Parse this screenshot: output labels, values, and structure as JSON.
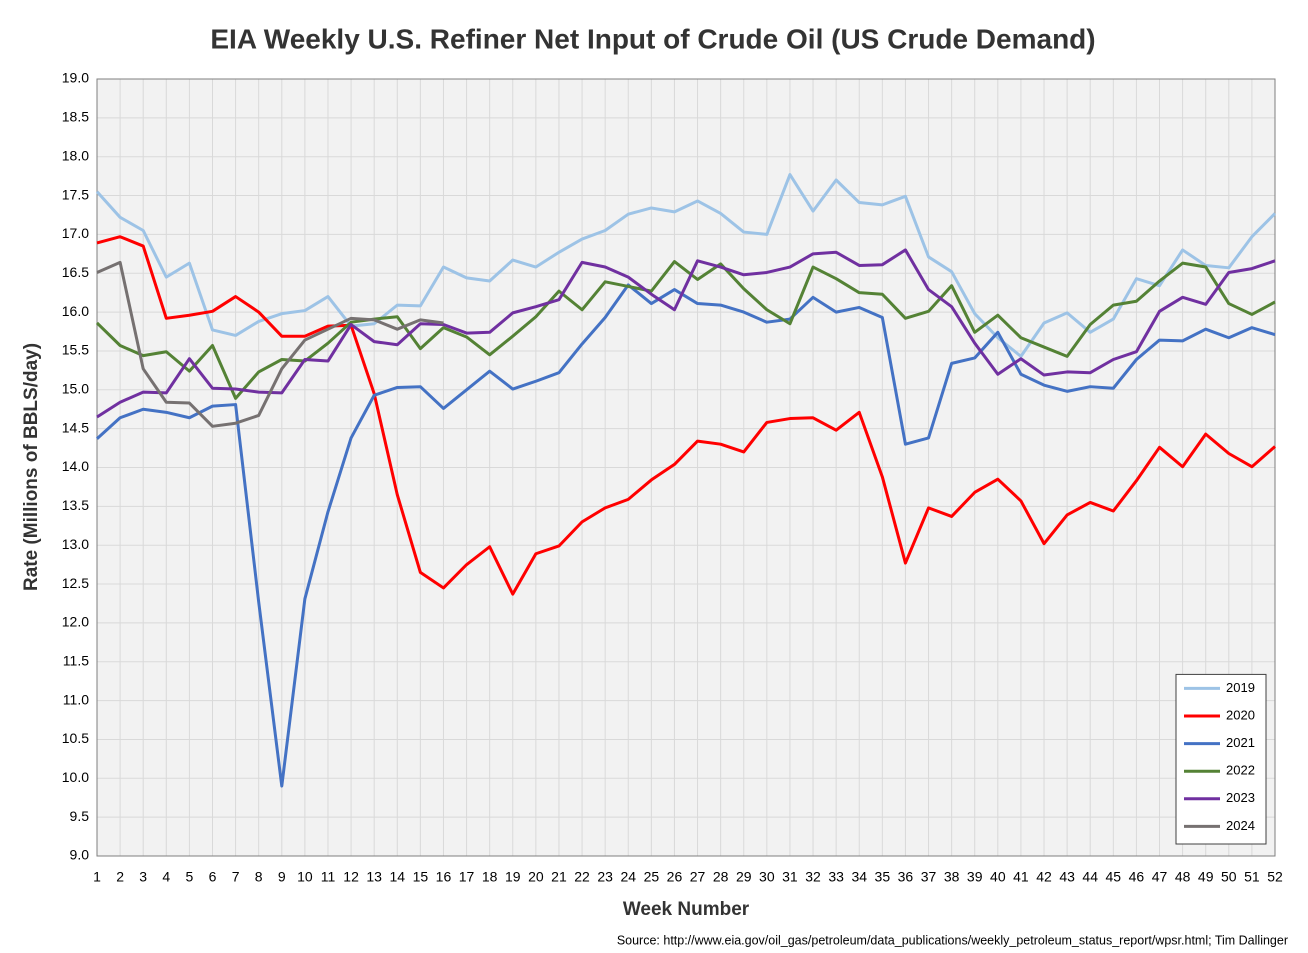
{
  "chart_data": {
    "type": "line",
    "title": "EIA Weekly U.S. Refiner Net Input of Crude Oil (US Crude Demand)",
    "xlabel": "Week Number",
    "ylabel": "Rate (Millions of BBLS/day)",
    "source": "Source: http://www.eia.gov/oil_gas/petroleum/data_publications/weekly_petroleum_status_report/wpsr.html; Tim Dallinger",
    "x": [
      1,
      2,
      3,
      4,
      5,
      6,
      7,
      8,
      9,
      10,
      11,
      12,
      13,
      14,
      15,
      16,
      17,
      18,
      19,
      20,
      21,
      22,
      23,
      24,
      25,
      26,
      27,
      28,
      29,
      30,
      31,
      32,
      33,
      34,
      35,
      36,
      37,
      38,
      39,
      40,
      41,
      42,
      43,
      44,
      45,
      46,
      47,
      48,
      49,
      50,
      51,
      52
    ],
    "xlim": [
      1,
      52
    ],
    "xticks": [
      1,
      2,
      3,
      4,
      5,
      6,
      7,
      8,
      9,
      10,
      11,
      12,
      13,
      14,
      15,
      16,
      17,
      18,
      19,
      20,
      21,
      22,
      23,
      24,
      25,
      26,
      27,
      28,
      29,
      30,
      31,
      32,
      33,
      34,
      35,
      36,
      37,
      38,
      39,
      40,
      41,
      42,
      43,
      44,
      45,
      46,
      47,
      48,
      49,
      50,
      51,
      52
    ],
    "ylim": [
      9,
      19
    ],
    "yticks": [
      {
        "value": 9,
        "label": "9.0"
      },
      {
        "value": 9.5,
        "label": "9.5"
      },
      {
        "value": 10,
        "label": "10.0"
      },
      {
        "value": 10.5,
        "label": "10.5"
      },
      {
        "value": 11,
        "label": "11.0"
      },
      {
        "value": 11.5,
        "label": "11.5"
      },
      {
        "value": 12,
        "label": "12.0"
      },
      {
        "value": 12.5,
        "label": "12.5"
      },
      {
        "value": 13,
        "label": "13.0"
      },
      {
        "value": 13.5,
        "label": "13.5"
      },
      {
        "value": 14,
        "label": "14.0"
      },
      {
        "value": 14.5,
        "label": "14.5"
      },
      {
        "value": 15,
        "label": "15.0"
      },
      {
        "value": 15.5,
        "label": "15.5"
      },
      {
        "value": 16,
        "label": "16.0"
      },
      {
        "value": 16.5,
        "label": "16.5"
      },
      {
        "value": 17,
        "label": "17.0"
      },
      {
        "value": 17.5,
        "label": "17.5"
      },
      {
        "value": 18,
        "label": "18.0"
      },
      {
        "value": 18.5,
        "label": "18.5"
      },
      {
        "value": 19,
        "label": "19.0"
      }
    ],
    "grid": true,
    "legend": "lower right",
    "series": [
      {
        "name": "2019",
        "color": "#9dc3e6",
        "values": [
          17.55,
          17.22,
          17.05,
          16.45,
          16.63,
          15.77,
          15.7,
          15.88,
          15.98,
          16.02,
          16.2,
          15.82,
          15.85,
          16.09,
          16.08,
          16.58,
          16.44,
          16.4,
          16.67,
          16.58,
          16.77,
          16.94,
          17.05,
          17.26,
          17.34,
          17.29,
          17.43,
          17.27,
          17.03,
          17.0,
          17.77,
          17.3,
          17.7,
          17.41,
          17.38,
          17.49,
          16.71,
          16.52,
          15.98,
          15.67,
          15.43,
          15.86,
          15.99,
          15.74,
          15.91,
          16.43,
          16.34,
          16.8,
          16.6,
          16.57,
          16.97,
          17.27
        ]
      },
      {
        "name": "2020",
        "color": "#ff0000",
        "values": [
          16.89,
          16.97,
          16.85,
          15.92,
          15.96,
          16.01,
          16.2,
          16.0,
          15.69,
          15.69,
          15.82,
          15.83,
          14.95,
          13.65,
          12.65,
          12.45,
          12.75,
          12.98,
          12.37,
          12.89,
          12.99,
          13.3,
          13.48,
          13.59,
          13.84,
          14.04,
          14.34,
          14.3,
          14.2,
          14.58,
          14.63,
          14.64,
          14.48,
          14.71,
          13.88,
          12.77,
          13.48,
          13.37,
          13.68,
          13.85,
          13.57,
          13.02,
          13.39,
          13.55,
          13.44,
          13.83,
          14.26,
          14.01,
          14.43,
          14.18,
          14.01,
          14.27
        ]
      },
      {
        "name": "2021",
        "color": "#4472c4",
        "values": [
          14.37,
          14.64,
          14.75,
          14.71,
          14.64,
          14.79,
          14.81,
          12.27,
          9.9,
          12.31,
          13.43,
          14.38,
          14.93,
          15.03,
          15.04,
          14.76,
          15.0,
          15.24,
          15.01,
          15.11,
          15.22,
          15.59,
          15.93,
          16.35,
          16.11,
          16.29,
          16.11,
          16.09,
          16.0,
          15.87,
          15.91,
          16.19,
          16.0,
          16.06,
          15.93,
          14.3,
          14.38,
          15.34,
          15.41,
          15.74,
          15.2,
          15.06,
          14.98,
          15.04,
          15.02,
          15.39,
          15.64,
          15.63,
          15.78,
          15.67,
          15.8,
          15.71
        ]
      },
      {
        "name": "2022",
        "color": "#548235",
        "values": [
          15.86,
          15.57,
          15.44,
          15.49,
          15.24,
          15.57,
          14.89,
          15.23,
          15.39,
          15.37,
          15.6,
          15.87,
          15.91,
          15.94,
          15.53,
          15.8,
          15.68,
          15.45,
          15.69,
          15.94,
          16.27,
          16.03,
          16.39,
          16.33,
          16.27,
          16.65,
          16.42,
          16.62,
          16.3,
          16.03,
          15.85,
          16.58,
          16.43,
          16.25,
          16.23,
          15.92,
          16.01,
          16.34,
          15.74,
          15.96,
          15.67,
          15.55,
          15.43,
          15.84,
          16.09,
          16.14,
          16.4,
          16.63,
          16.58,
          16.11,
          15.97,
          16.13
        ]
      },
      {
        "name": "2023",
        "color": "#7030a0",
        "values": [
          14.65,
          14.84,
          14.97,
          14.96,
          15.4,
          15.02,
          15.01,
          14.97,
          14.96,
          15.39,
          15.37,
          15.84,
          15.62,
          15.58,
          15.85,
          15.84,
          15.73,
          15.74,
          15.99,
          16.07,
          16.16,
          16.64,
          16.58,
          16.45,
          16.23,
          16.03,
          16.66,
          16.58,
          16.48,
          16.51,
          16.58,
          16.75,
          16.77,
          16.6,
          16.61,
          16.8,
          16.29,
          16.07,
          15.6,
          15.2,
          15.4,
          15.19,
          15.23,
          15.22,
          15.39,
          15.49,
          16.01,
          16.19,
          16.1,
          16.51,
          16.56,
          16.66
        ]
      },
      {
        "name": "2024",
        "color": "#767171",
        "values": [
          16.51,
          16.64,
          15.27,
          14.84,
          14.83,
          14.53,
          14.57,
          14.67,
          15.27,
          15.64,
          15.78,
          15.92,
          15.9,
          15.78,
          15.9,
          15.86,
          null,
          null,
          null,
          null,
          null,
          null,
          null,
          null,
          null,
          null,
          null,
          null,
          null,
          null,
          null,
          null,
          null,
          null,
          null,
          null,
          null,
          null,
          null,
          null,
          null,
          null,
          null,
          null,
          null,
          null,
          null,
          null,
          null,
          null,
          null,
          null
        ]
      }
    ]
  }
}
